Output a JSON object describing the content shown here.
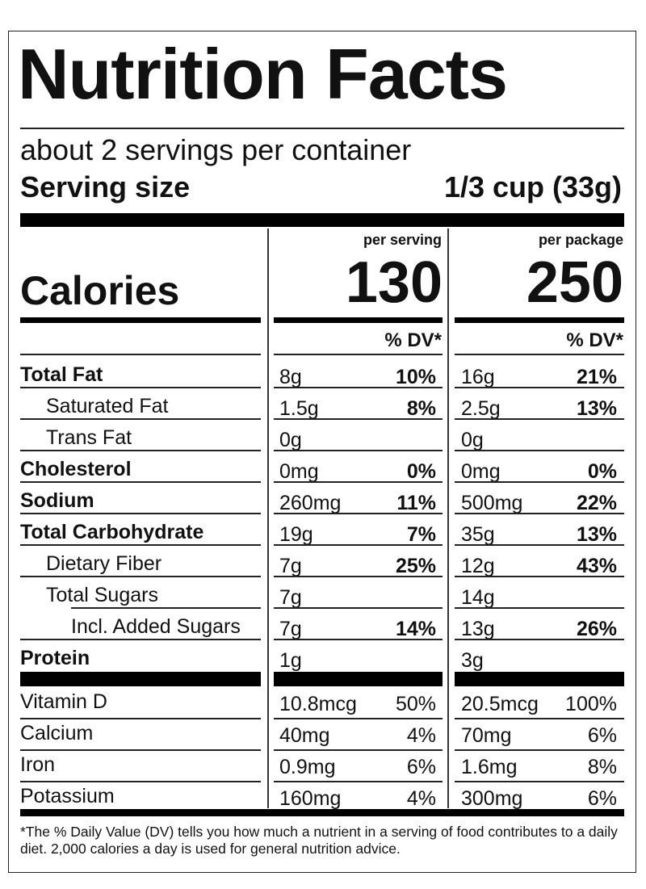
{
  "title": "Nutrition Facts",
  "servings_per_container": "about 2 servings per container",
  "serving_size_label": "Serving size",
  "serving_size_value": "1/3 cup (33g)",
  "columns": {
    "per_serving_label": "per serving",
    "per_package_label": "per package",
    "dv_label": "% DV*"
  },
  "calories": {
    "label": "Calories",
    "per_serving": "130",
    "per_package": "250"
  },
  "nutrients": [
    {
      "name": "Total Fat",
      "bold": true,
      "indent": 0,
      "s_amt": "8g",
      "s_dv": "10%",
      "p_amt": "16g",
      "p_dv": "21%"
    },
    {
      "name": "Saturated Fat",
      "bold": false,
      "indent": 1,
      "s_amt": "1.5g",
      "s_dv": "8%",
      "p_amt": "2.5g",
      "p_dv": "13%"
    },
    {
      "name": "Trans Fat",
      "bold": false,
      "indent": 1,
      "s_amt": "0g",
      "s_dv": "",
      "p_amt": "0g",
      "p_dv": ""
    },
    {
      "name": "Cholesterol",
      "bold": true,
      "indent": 0,
      "s_amt": "0mg",
      "s_dv": "0%",
      "p_amt": "0mg",
      "p_dv": "0%"
    },
    {
      "name": "Sodium",
      "bold": true,
      "indent": 0,
      "s_amt": "260mg",
      "s_dv": "11%",
      "p_amt": "500mg",
      "p_dv": "22%"
    },
    {
      "name": "Total Carbohydrate",
      "bold": true,
      "indent": 0,
      "s_amt": "19g",
      "s_dv": "7%",
      "p_amt": "35g",
      "p_dv": "13%"
    },
    {
      "name": "Dietary Fiber",
      "bold": false,
      "indent": 1,
      "s_amt": "7g",
      "s_dv": "25%",
      "p_amt": "12g",
      "p_dv": "43%"
    },
    {
      "name": "Total Sugars",
      "bold": false,
      "indent": 1,
      "s_amt": "7g",
      "s_dv": "",
      "p_amt": "14g",
      "p_dv": ""
    },
    {
      "name": "Incl. Added Sugars",
      "bold": false,
      "indent": 2,
      "s_amt": "7g",
      "s_dv": "14%",
      "p_amt": "13g",
      "p_dv": "26%"
    },
    {
      "name": "Protein",
      "bold": true,
      "indent": 0,
      "s_amt": "1g",
      "s_dv": "",
      "p_amt": "3g",
      "p_dv": ""
    }
  ],
  "vitamins": [
    {
      "name": "Vitamin D",
      "s_amt": "10.8mcg",
      "s_dv": "50%",
      "p_amt": "20.5mcg",
      "p_dv": "100%"
    },
    {
      "name": "Calcium",
      "s_amt": "40mg",
      "s_dv": "4%",
      "p_amt": "70mg",
      "p_dv": "6%"
    },
    {
      "name": "Iron",
      "s_amt": "0.9mg",
      "s_dv": "6%",
      "p_amt": "1.6mg",
      "p_dv": "8%"
    },
    {
      "name": "Potassium",
      "s_amt": "160mg",
      "s_dv": "4%",
      "p_amt": "300mg",
      "p_dv": "6%"
    }
  ],
  "footnote": "*The % Daily Value (DV) tells you how much a nutrient in a serving of food contributes to a daily diet. 2,000 calories a day is used for general nutrition advice."
}
